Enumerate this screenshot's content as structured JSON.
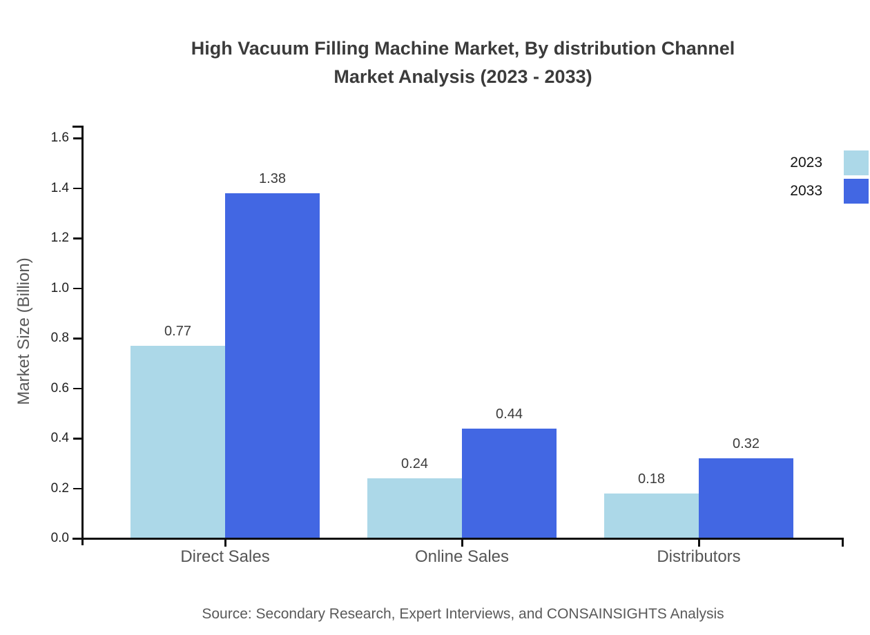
{
  "title": {
    "line1": "High Vacuum Filling Machine Market, By distribution Channel",
    "line2": "Market Analysis (2023 - 2033)"
  },
  "source": "Source: Secondary Research, Expert Interviews, and CONSAINSIGHTS Analysis",
  "chart_data": {
    "type": "bar",
    "categories": [
      "Direct Sales",
      "Online Sales",
      "Distributors"
    ],
    "series": [
      {
        "name": "2023",
        "color": "#ACD8E8",
        "values": [
          0.77,
          0.24,
          0.18
        ]
      },
      {
        "name": "2033",
        "color": "#4267E3",
        "values": [
          1.38,
          0.44,
          0.32
        ]
      }
    ],
    "xlabel": "",
    "ylabel": "Market Size (Billion)",
    "ylim": [
      0,
      1.6
    ],
    "ytick_step": 0.2,
    "yticks": [
      "0.0",
      "0.2",
      "0.4",
      "0.6",
      "0.8",
      "1.0",
      "1.2",
      "1.4",
      "1.6"
    ],
    "grid": false,
    "legend_position": "top-right",
    "value_labels": true,
    "axis_color": "#0d0d0d"
  }
}
